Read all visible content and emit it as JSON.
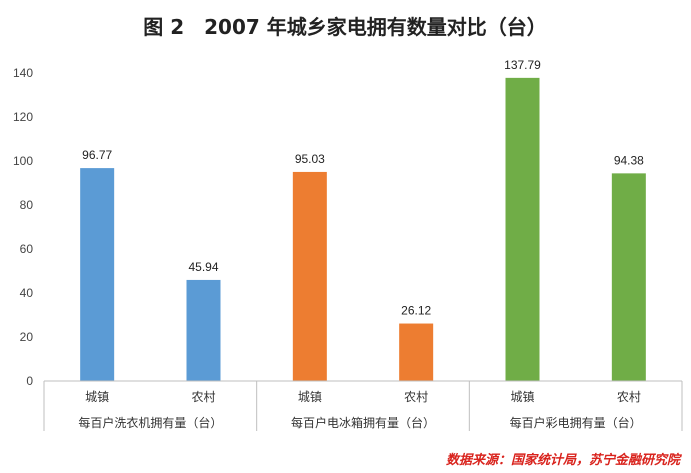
{
  "chart_data": {
    "type": "bar",
    "title": "图 2　2007 年城乡家电拥有数量对比（台）",
    "ylim": [
      0,
      140
    ],
    "yticks": [
      0,
      20,
      40,
      60,
      80,
      100,
      120,
      140
    ],
    "grid": false,
    "groups": [
      {
        "label": "每百户洗衣机拥有量（台）",
        "color": "#5b9bd5",
        "bars": [
          {
            "category": "城镇",
            "value": 96.77,
            "label": "96.77"
          },
          {
            "category": "农村",
            "value": 45.94,
            "label": "45.94"
          }
        ]
      },
      {
        "label": "每百户电冰箱拥有量（台）",
        "color": "#ed7d31",
        "bars": [
          {
            "category": "城镇",
            "value": 95.03,
            "label": "95.03"
          },
          {
            "category": "农村",
            "value": 26.12,
            "label": "26.12"
          }
        ]
      },
      {
        "label": "每百户彩电拥有量（台）",
        "color": "#70ad47",
        "bars": [
          {
            "category": "城镇",
            "value": 137.79,
            "label": "137.79"
          },
          {
            "category": "农村",
            "value": 94.38,
            "label": "94.38"
          }
        ]
      }
    ]
  },
  "source": "数据来源：国家统计局，苏宁金融研究院"
}
